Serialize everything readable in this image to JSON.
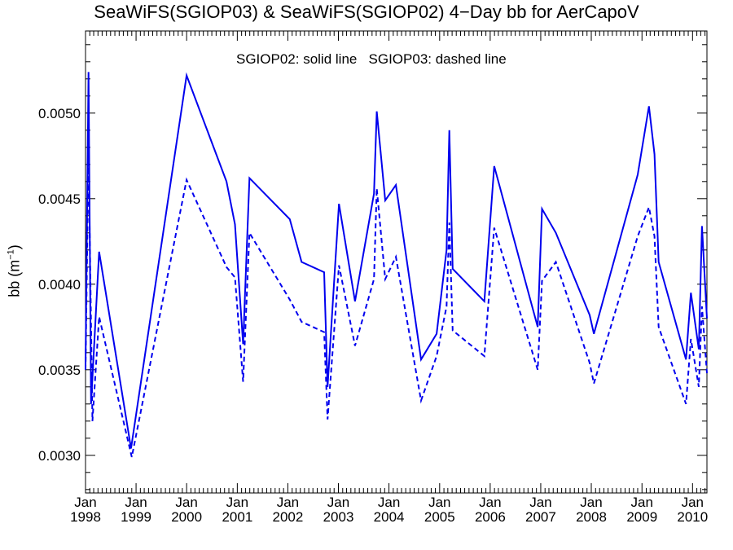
{
  "title": "SeaWiFS(SGIOP03) & SeaWiFS(SGIOP02) 4−Day bb for AerCapoV",
  "legend_note": "SGIOP02: solid line   SGIOP03: dashed line",
  "ylabel_main": "bb (m",
  "ylabel_sup": "−1",
  "ylabel_close": ")",
  "colors": {
    "line": "#0000ee",
    "axis": "#000000"
  },
  "chart_data": {
    "type": "line",
    "title": "SeaWiFS(SGIOP03) & SeaWiFS(SGIOP02) 4−Day bb for AerCapoV",
    "xlabel": "",
    "ylabel": "bb (m⁻¹)",
    "xlim": [
      "1998-01-01",
      "2010-04-15"
    ],
    "ylim": [
      0.00278,
      0.00548
    ],
    "yticks": [
      0.003,
      0.0035,
      0.004,
      0.0045,
      0.005
    ],
    "ytick_labels": [
      "0.0030",
      "0.0035",
      "0.0040",
      "0.0045",
      "0.0050"
    ],
    "xticks": [
      "1998-01-01",
      "1999-01-01",
      "2000-01-01",
      "2001-01-01",
      "2002-01-01",
      "2003-01-01",
      "2004-01-01",
      "2005-01-01",
      "2006-01-01",
      "2007-01-01",
      "2008-01-01",
      "2009-01-01",
      "2010-01-01"
    ],
    "xtick_labels": [
      [
        "Jan",
        "1998"
      ],
      [
        "Jan",
        "1999"
      ],
      [
        "Jan",
        "2000"
      ],
      [
        "Jan",
        "2001"
      ],
      [
        "Jan",
        "2002"
      ],
      [
        "Jan",
        "2003"
      ],
      [
        "Jan",
        "2004"
      ],
      [
        "Jan",
        "2005"
      ],
      [
        "Jan",
        "2006"
      ],
      [
        "Jan",
        "2007"
      ],
      [
        "Jan",
        "2008"
      ],
      [
        "Jan",
        "2009"
      ],
      [
        "Jan",
        "2010"
      ]
    ],
    "grid": false,
    "series": [
      {
        "name": "SGIOP02",
        "style": "solid",
        "points": [
          [
            "1998-01-01",
            0.00352
          ],
          [
            "1998-01-23",
            0.00524
          ],
          [
            "1998-02-10",
            0.0033
          ],
          [
            "1998-04-09",
            0.00419
          ],
          [
            "1998-11-26",
            0.00304
          ],
          [
            "2000-01-01",
            0.00522
          ],
          [
            "2000-10-15",
            0.0046
          ],
          [
            "2000-12-15",
            0.00435
          ],
          [
            "2001-02-12",
            0.00365
          ],
          [
            "2001-03-30",
            0.00462
          ],
          [
            "2002-01-15",
            0.00438
          ],
          [
            "2002-04-10",
            0.00413
          ],
          [
            "2002-09-20",
            0.00407
          ],
          [
            "2002-10-15",
            0.0034
          ],
          [
            "2003-01-05",
            0.00447
          ],
          [
            "2003-05-01",
            0.0039
          ],
          [
            "2003-09-15",
            0.00453
          ],
          [
            "2003-10-05",
            0.00501
          ],
          [
            "2003-12-05",
            0.00449
          ],
          [
            "2004-02-20",
            0.00458
          ],
          [
            "2004-08-20",
            0.00356
          ],
          [
            "2004-12-10",
            0.00371
          ],
          [
            "2005-02-20",
            0.0042
          ],
          [
            "2005-03-12",
            0.0049
          ],
          [
            "2005-04-05",
            0.00409
          ],
          [
            "2005-11-20",
            0.0039
          ],
          [
            "2006-01-30",
            0.00469
          ],
          [
            "2006-12-10",
            0.00375
          ],
          [
            "2007-01-10",
            0.00444
          ],
          [
            "2007-04-20",
            0.0043
          ],
          [
            "2007-12-20",
            0.00382
          ],
          [
            "2008-01-20",
            0.00371
          ],
          [
            "2008-12-01",
            0.00464
          ],
          [
            "2009-02-20",
            0.00504
          ],
          [
            "2009-04-01",
            0.00476
          ],
          [
            "2009-05-01",
            0.00413
          ],
          [
            "2009-11-15",
            0.00356
          ],
          [
            "2009-12-20",
            0.00395
          ],
          [
            "2010-02-15",
            0.00362
          ],
          [
            "2010-03-10",
            0.00434
          ],
          [
            "2010-04-15",
            0.0038
          ]
        ]
      },
      {
        "name": "SGIOP03",
        "style": "dashed",
        "points": [
          [
            "1998-01-01",
            0.0035
          ],
          [
            "1998-01-23",
            0.00478
          ],
          [
            "1998-02-20",
            0.0032
          ],
          [
            "1998-04-09",
            0.00381
          ],
          [
            "1998-12-01",
            0.00299
          ],
          [
            "2000-01-01",
            0.00461
          ],
          [
            "2000-10-15",
            0.0041
          ],
          [
            "2000-12-15",
            0.00404
          ],
          [
            "2001-02-12",
            0.00343
          ],
          [
            "2001-03-30",
            0.0043
          ],
          [
            "2002-01-15",
            0.00391
          ],
          [
            "2002-04-10",
            0.00378
          ],
          [
            "2002-09-20",
            0.00372
          ],
          [
            "2002-10-15",
            0.00321
          ],
          [
            "2003-01-05",
            0.00411
          ],
          [
            "2003-05-01",
            0.00364
          ],
          [
            "2003-09-15",
            0.00403
          ],
          [
            "2003-10-05",
            0.00456
          ],
          [
            "2003-12-05",
            0.00403
          ],
          [
            "2004-02-20",
            0.00416
          ],
          [
            "2004-08-20",
            0.00332
          ],
          [
            "2004-12-10",
            0.00358
          ],
          [
            "2005-02-20",
            0.00387
          ],
          [
            "2005-03-12",
            0.00436
          ],
          [
            "2005-04-05",
            0.00373
          ],
          [
            "2005-11-20",
            0.00358
          ],
          [
            "2006-01-30",
            0.00433
          ],
          [
            "2006-12-10",
            0.0035
          ],
          [
            "2007-01-10",
            0.00402
          ],
          [
            "2007-04-20",
            0.00413
          ],
          [
            "2007-12-20",
            0.00354
          ],
          [
            "2008-01-20",
            0.00342
          ],
          [
            "2008-12-01",
            0.00428
          ],
          [
            "2009-02-20",
            0.00445
          ],
          [
            "2009-04-01",
            0.00428
          ],
          [
            "2009-05-01",
            0.00375
          ],
          [
            "2009-11-15",
            0.0033
          ],
          [
            "2009-12-20",
            0.00368
          ],
          [
            "2010-02-15",
            0.0034
          ],
          [
            "2010-03-10",
            0.00387
          ],
          [
            "2010-04-15",
            0.00348
          ]
        ]
      }
    ]
  }
}
